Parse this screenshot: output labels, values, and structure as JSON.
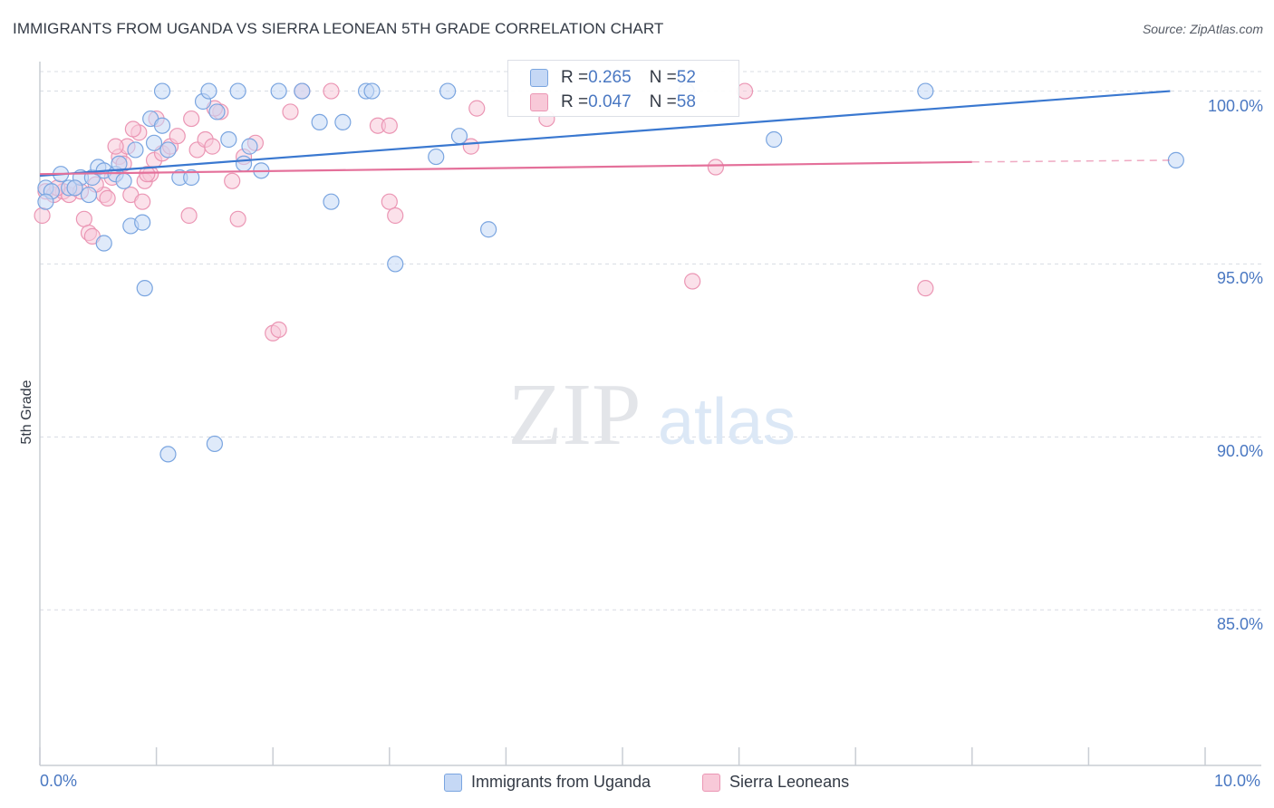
{
  "title": "IMMIGRANTS FROM UGANDA VS SIERRA LEONEAN 5TH GRADE CORRELATION CHART",
  "source": "Source: ZipAtlas.com",
  "watermark": {
    "zip": "ZIP",
    "atlas": "atlas"
  },
  "colors": {
    "blue_fill": "#c5d8f5",
    "blue_stroke": "#7aa5e0",
    "blue_line": "#3a78d0",
    "pink_fill": "#f8c9d8",
    "pink_stroke": "#eb96b4",
    "pink_line": "#e4709a",
    "text_blue": "#4a78c2",
    "grid": "#d8dce3"
  },
  "stats": [
    {
      "r_label": "R = ",
      "r_value": "0.265",
      "n_label": "N = ",
      "n_value": "52"
    },
    {
      "r_label": "R = ",
      "r_value": "0.047",
      "n_label": "N = ",
      "n_value": "58"
    }
  ],
  "legend": [
    "Immigrants from Uganda",
    "Sierra Leoneans"
  ],
  "chart_data": {
    "type": "scatter",
    "title": "IMMIGRANTS FROM UGANDA VS SIERRA LEONEAN 5TH GRADE CORRELATION CHART",
    "xlabel": "",
    "ylabel": "5th Grade",
    "xlim": [
      0,
      10
    ],
    "ylim": [
      80.5,
      100.8
    ],
    "x_tick_labels": [
      "0.0%",
      "10.0%"
    ],
    "y_ticks": [
      100,
      95,
      90,
      85
    ],
    "y_tick_labels": [
      "100.0%",
      "95.0%",
      "90.0%",
      "85.0%"
    ],
    "grid": true,
    "series": [
      {
        "name": "Immigrants from Uganda",
        "color": "blue",
        "trend": {
          "x0": 0.0,
          "y0": 97.55,
          "x1": 9.7,
          "y1": 100.0
        },
        "points": [
          [
            0.05,
            97.2
          ],
          [
            0.1,
            97.1
          ],
          [
            0.18,
            97.6
          ],
          [
            0.25,
            97.2
          ],
          [
            0.35,
            97.5
          ],
          [
            0.45,
            97.5
          ],
          [
            0.42,
            97.0
          ],
          [
            0.5,
            97.8
          ],
          [
            0.55,
            97.7
          ],
          [
            0.65,
            97.6
          ],
          [
            0.68,
            97.9
          ],
          [
            0.72,
            97.4
          ],
          [
            0.82,
            98.3
          ],
          [
            0.78,
            96.1
          ],
          [
            0.88,
            96.2
          ],
          [
            0.9,
            94.3
          ],
          [
            0.95,
            99.2
          ],
          [
            0.98,
            98.5
          ],
          [
            1.05,
            99.0
          ],
          [
            1.1,
            98.3
          ],
          [
            1.2,
            97.5
          ],
          [
            1.3,
            97.5
          ],
          [
            1.4,
            99.7
          ],
          [
            1.52,
            99.4
          ],
          [
            1.62,
            98.6
          ],
          [
            1.75,
            97.9
          ],
          [
            1.8,
            98.4
          ],
          [
            1.9,
            97.7
          ],
          [
            1.05,
            100.0
          ],
          [
            1.45,
            100.0
          ],
          [
            1.7,
            100.0
          ],
          [
            2.05,
            100.0
          ],
          [
            2.25,
            100.0
          ],
          [
            2.4,
            99.1
          ],
          [
            2.6,
            99.1
          ],
          [
            2.8,
            100.0
          ],
          [
            2.85,
            100.0
          ],
          [
            2.5,
            96.8
          ],
          [
            3.05,
            95.0
          ],
          [
            3.5,
            100.0
          ],
          [
            3.4,
            98.1
          ],
          [
            3.6,
            98.7
          ],
          [
            3.85,
            96.0
          ],
          [
            5.55,
            100.0
          ],
          [
            6.3,
            98.6
          ],
          [
            7.6,
            100.0
          ],
          [
            9.75,
            98.0
          ],
          [
            0.55,
            95.6
          ],
          [
            1.1,
            89.5
          ],
          [
            1.5,
            89.8
          ],
          [
            0.05,
            96.8
          ],
          [
            0.3,
            97.2
          ]
        ]
      },
      {
        "name": "Sierra Leoneans",
        "color": "pink",
        "trend": {
          "x0": 0.0,
          "y0": 97.6,
          "x1": 8.0,
          "y1": 97.95,
          "dash_to_x": 9.7,
          "dash_to_y": 98.0
        },
        "points": [
          [
            0.02,
            96.4
          ],
          [
            0.05,
            97.1
          ],
          [
            0.12,
            97.0
          ],
          [
            0.2,
            97.1
          ],
          [
            0.25,
            97.0
          ],
          [
            0.3,
            97.2
          ],
          [
            0.38,
            96.3
          ],
          [
            0.42,
            95.9
          ],
          [
            0.45,
            95.8
          ],
          [
            0.55,
            97.0
          ],
          [
            0.58,
            96.9
          ],
          [
            0.62,
            97.5
          ],
          [
            0.68,
            98.1
          ],
          [
            0.72,
            97.9
          ],
          [
            0.75,
            98.4
          ],
          [
            0.78,
            97.0
          ],
          [
            0.85,
            98.8
          ],
          [
            0.88,
            96.8
          ],
          [
            0.9,
            97.4
          ],
          [
            0.95,
            97.6
          ],
          [
            0.98,
            98.0
          ],
          [
            1.05,
            98.2
          ],
          [
            1.12,
            98.4
          ],
          [
            1.18,
            98.7
          ],
          [
            1.28,
            96.4
          ],
          [
            1.3,
            99.2
          ],
          [
            1.35,
            98.3
          ],
          [
            1.42,
            98.6
          ],
          [
            1.48,
            98.4
          ],
          [
            1.55,
            99.4
          ],
          [
            1.65,
            97.4
          ],
          [
            1.7,
            96.3
          ],
          [
            1.75,
            98.1
          ],
          [
            1.85,
            98.5
          ],
          [
            2.0,
            93.0
          ],
          [
            2.05,
            93.1
          ],
          [
            2.15,
            99.4
          ],
          [
            2.25,
            100.0
          ],
          [
            2.5,
            100.0
          ],
          [
            2.9,
            99.0
          ],
          [
            3.0,
            99.0
          ],
          [
            3.0,
            96.8
          ],
          [
            3.05,
            96.4
          ],
          [
            3.75,
            99.5
          ],
          [
            3.7,
            98.4
          ],
          [
            4.35,
            99.2
          ],
          [
            5.6,
            94.5
          ],
          [
            5.8,
            97.8
          ],
          [
            6.05,
            100.0
          ],
          [
            7.6,
            94.3
          ],
          [
            0.65,
            98.4
          ],
          [
            0.8,
            98.9
          ],
          [
            1.0,
            99.2
          ],
          [
            1.5,
            99.5
          ],
          [
            0.35,
            97.1
          ],
          [
            0.15,
            97.2
          ],
          [
            0.48,
            97.3
          ],
          [
            0.92,
            97.6
          ]
        ]
      }
    ]
  }
}
